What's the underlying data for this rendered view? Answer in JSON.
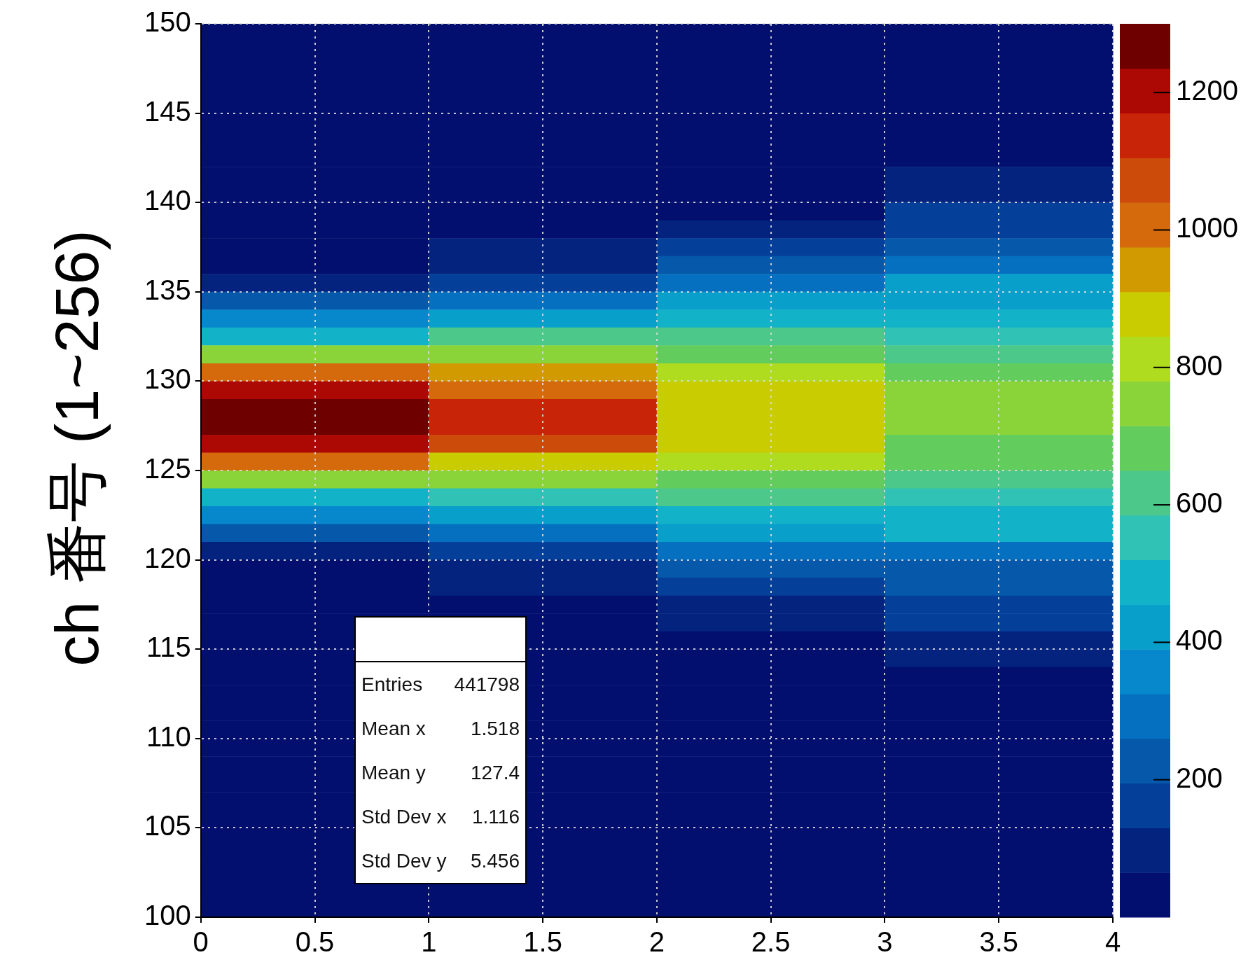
{
  "chart_data": {
    "type": "heatmap",
    "ylabel": "ch 番号 (1~256)",
    "xlim": [
      0,
      4
    ],
    "xticks": [
      0,
      0.5,
      1,
      1.5,
      2,
      2.5,
      3,
      3.5,
      4
    ],
    "ylim": [
      100,
      150
    ],
    "yticks": [
      100,
      105,
      110,
      115,
      120,
      125,
      130,
      135,
      140,
      145,
      150
    ],
    "grid": true,
    "clim": [
      0,
      1300
    ],
    "cticks": [
      200,
      400,
      600,
      800,
      1000,
      1200
    ],
    "annotations": [
      "Entries 441798",
      "Mean x 1.518",
      "Mean y 127.4",
      "Std Dev x 1.116",
      "Std Dev y 5.456"
    ],
    "cells": [
      [
        30,
        30,
        30,
        30
      ],
      [
        30,
        30,
        30,
        30
      ],
      [
        30,
        30,
        30,
        30
      ],
      [
        30,
        30,
        30,
        30
      ],
      [
        30,
        30,
        30,
        30
      ],
      [
        30,
        30,
        30,
        30
      ],
      [
        30,
        30,
        30,
        30
      ],
      [
        30,
        30,
        30,
        30
      ],
      [
        30,
        30,
        30,
        100
      ],
      [
        30,
        30,
        30,
        100
      ],
      [
        30,
        30,
        30,
        160
      ],
      [
        30,
        30,
        100,
        160
      ],
      [
        30,
        100,
        160,
        230
      ],
      [
        30,
        100,
        230,
        290
      ],
      [
        100,
        160,
        290,
        420
      ],
      [
        230,
        290,
        420,
        420
      ],
      [
        360,
        420,
        490,
        490
      ],
      [
        490,
        620,
        620,
        550
      ],
      [
        750,
        750,
        680,
        620
      ],
      [
        1010,
        940,
        810,
        680
      ],
      [
        1200,
        1010,
        880,
        750
      ],
      [
        1270,
        1140,
        880,
        750
      ],
      [
        1270,
        1140,
        880,
        750
      ],
      [
        1200,
        1070,
        880,
        680
      ],
      [
        1010,
        880,
        810,
        680
      ],
      [
        750,
        750,
        680,
        620
      ],
      [
        490,
        550,
        620,
        550
      ],
      [
        360,
        420,
        490,
        490
      ],
      [
        230,
        290,
        420,
        490
      ],
      [
        100,
        160,
        290,
        290
      ],
      [
        30,
        100,
        230,
        230
      ],
      [
        30,
        100,
        160,
        230
      ],
      [
        30,
        30,
        100,
        160
      ],
      [
        30,
        30,
        100,
        160
      ],
      [
        30,
        30,
        30,
        100
      ],
      [
        30,
        30,
        30,
        100
      ],
      [
        30,
        30,
        30,
        30
      ],
      [
        30,
        30,
        30,
        30
      ],
      [
        30,
        30,
        30,
        30
      ],
      [
        30,
        30,
        30,
        30
      ],
      [
        30,
        30,
        30,
        30
      ],
      [
        30,
        30,
        30,
        30
      ],
      [
        30,
        30,
        30,
        30
      ],
      [
        30,
        30,
        30,
        30
      ],
      [
        30,
        30,
        30,
        30
      ],
      [
        30,
        30,
        30,
        30
      ],
      [
        30,
        30,
        30,
        30
      ],
      [
        30,
        30,
        30,
        30
      ],
      [
        30,
        30,
        30,
        30
      ],
      [
        30,
        30,
        30,
        30
      ]
    ]
  }
}
